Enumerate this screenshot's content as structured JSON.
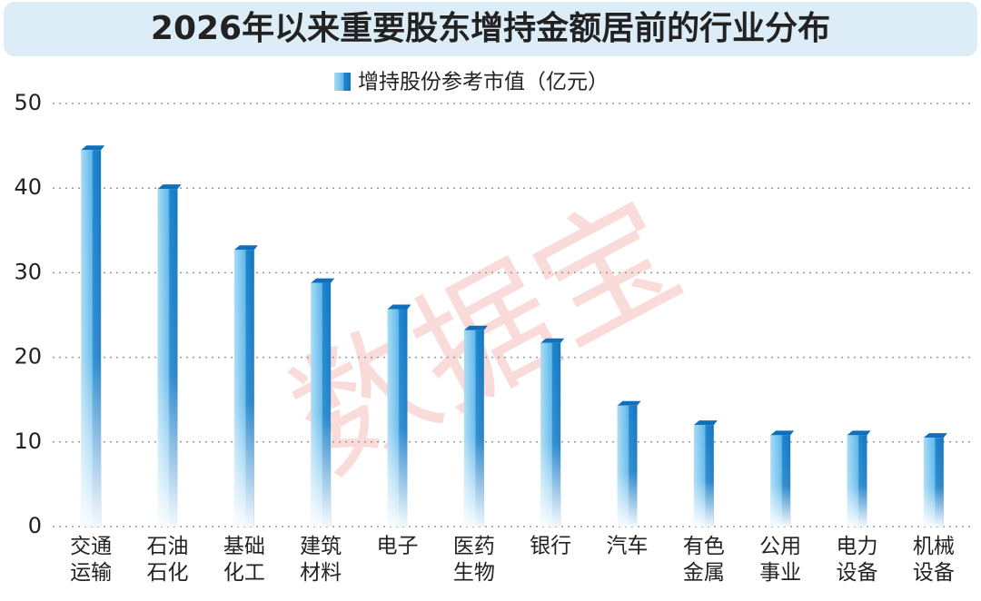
{
  "chart_data": {
    "type": "bar",
    "title": "2026年以来重要股东增持金额居前的行业分布",
    "watermark": "数据宝",
    "categories": [
      "交通运输",
      "石油石化",
      "基础化工",
      "建筑材料",
      "电子",
      "医药生物",
      "银行",
      "汽车",
      "有色金属",
      "公用事业",
      "电力设备",
      "机械设备"
    ],
    "series": [
      {
        "name": "增持股份参考市值（亿元）",
        "color": "#1e8fd6",
        "values": [
          44.5,
          39.9,
          32.7,
          28.8,
          25.7,
          23.2,
          21.7,
          14.3,
          12.0,
          10.8,
          10.8,
          10.5
        ]
      }
    ],
    "ylim": [
      0,
      50
    ],
    "yticks": [
      0,
      10,
      20,
      30,
      40,
      50
    ],
    "grid": true,
    "legend": "top"
  }
}
